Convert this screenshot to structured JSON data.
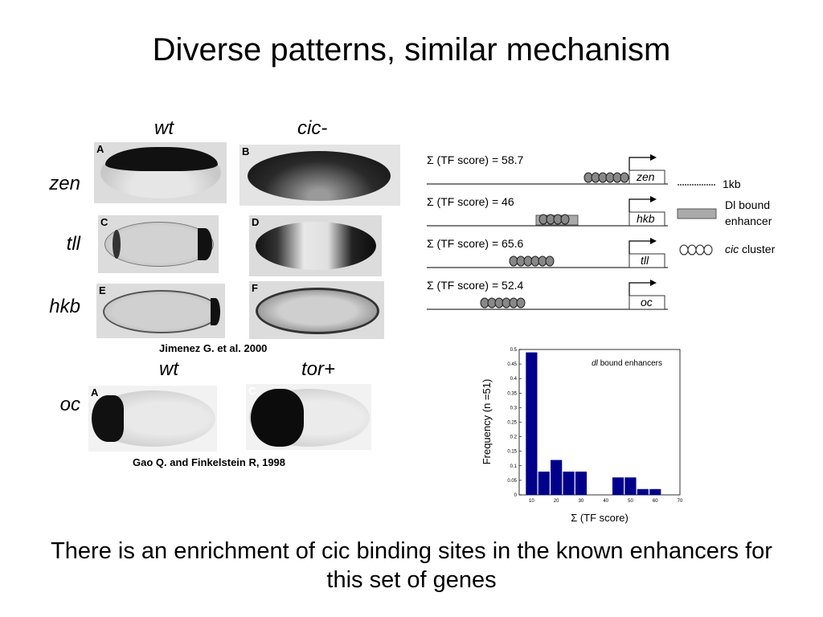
{
  "slide": {
    "title": "Diverse patterns, similar mechanism",
    "conclusion": "There is an enrichment of cic binding sites in the known enhancers for this set of genes"
  },
  "top_figure": {
    "col_labels": [
      "wt",
      "cic-"
    ],
    "row_labels": [
      "zen",
      "tll",
      "hkb"
    ],
    "panel_letters": [
      "A",
      "B",
      "C",
      "D",
      "E",
      "F"
    ],
    "citation": "Jimenez G. et al. 2000"
  },
  "bottom_figure": {
    "col_labels": [
      "wt",
      "tor+"
    ],
    "row_labels": [
      "oc"
    ],
    "panel_letters": [
      "A",
      "C"
    ],
    "citation": "Gao Q. and Finkelstein R, 1998"
  },
  "gene_diagram": {
    "rows": [
      {
        "score_label": "Σ (TF score) = 58.7",
        "gene": "zen"
      },
      {
        "score_label": "Σ (TF score) = 46",
        "gene": "hkb"
      },
      {
        "score_label": "Σ (TF score) = 65.6",
        "gene": "tll"
      },
      {
        "score_label": "Σ (TF score) = 52.4",
        "gene": "oc"
      }
    ],
    "legend": {
      "scale": "1kb",
      "enhancer_line1": "Dl bound",
      "enhancer_line2": "enhancer",
      "cluster_italic": "cic",
      "cluster_rest": " cluster"
    }
  },
  "chart_data": {
    "type": "bar",
    "title": "dl bound enhancers",
    "title_italic": "dl",
    "title_rest": " bound enhancers",
    "xlabel": "Σ (TF score)",
    "ylabel": "Frequency (n =51)",
    "xlim": [
      0,
      70
    ],
    "ylim": [
      0,
      0.5
    ],
    "xticks": [
      10,
      20,
      30,
      40,
      50,
      60,
      70
    ],
    "yticks": [
      0,
      0.05,
      0.1,
      0.15,
      0.2,
      0.25,
      0.3,
      0.35,
      0.4,
      0.45,
      0.5
    ],
    "bar_width": 5,
    "x": [
      10,
      15,
      20,
      25,
      30,
      35,
      40,
      45,
      50,
      55,
      60,
      65
    ],
    "values": [
      0.49,
      0.08,
      0.12,
      0.08,
      0.08,
      0,
      0,
      0.06,
      0.06,
      0.02,
      0.02,
      0
    ],
    "bar_color": "#00008b",
    "grid": false
  }
}
